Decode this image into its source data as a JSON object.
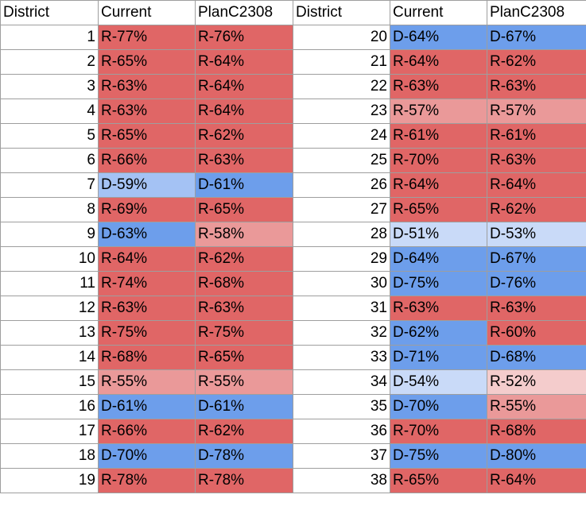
{
  "headers": [
    "District",
    "Current",
    "PlanC2308",
    "District",
    "Current",
    "PlanC2308"
  ],
  "colors": {
    "r-strong": "#e06666",
    "r-light": "#ea9999",
    "r-pale": "#f4cccc",
    "d-strong": "#6d9eeb",
    "d-light": "#a4c2f4",
    "d-pale": "#c9daf8"
  },
  "left": [
    {
      "district": "1",
      "current": "R-77%",
      "plan": "R-76%",
      "current_shade": "r-strong",
      "plan_shade": "r-strong"
    },
    {
      "district": "2",
      "current": "R-65%",
      "plan": "R-64%",
      "current_shade": "r-strong",
      "plan_shade": "r-strong"
    },
    {
      "district": "3",
      "current": "R-63%",
      "plan": "R-64%",
      "current_shade": "r-strong",
      "plan_shade": "r-strong"
    },
    {
      "district": "4",
      "current": "R-63%",
      "plan": "R-64%",
      "current_shade": "r-strong",
      "plan_shade": "r-strong"
    },
    {
      "district": "5",
      "current": "R-65%",
      "plan": "R-62%",
      "current_shade": "r-strong",
      "plan_shade": "r-strong"
    },
    {
      "district": "6",
      "current": "R-66%",
      "plan": "R-63%",
      "current_shade": "r-strong",
      "plan_shade": "r-strong"
    },
    {
      "district": "7",
      "current": "D-59%",
      "plan": "D-61%",
      "current_shade": "d-light",
      "plan_shade": "d-strong"
    },
    {
      "district": "8",
      "current": "R-69%",
      "plan": "R-65%",
      "current_shade": "r-strong",
      "plan_shade": "r-strong"
    },
    {
      "district": "9",
      "current": "D-63%",
      "plan": "R-58%",
      "current_shade": "d-strong",
      "plan_shade": "r-light"
    },
    {
      "district": "10",
      "current": "R-64%",
      "plan": "R-62%",
      "current_shade": "r-strong",
      "plan_shade": "r-strong"
    },
    {
      "district": "11",
      "current": "R-74%",
      "plan": "R-68%",
      "current_shade": "r-strong",
      "plan_shade": "r-strong"
    },
    {
      "district": "12",
      "current": "R-63%",
      "plan": "R-63%",
      "current_shade": "r-strong",
      "plan_shade": "r-strong"
    },
    {
      "district": "13",
      "current": "R-75%",
      "plan": "R-75%",
      "current_shade": "r-strong",
      "plan_shade": "r-strong"
    },
    {
      "district": "14",
      "current": "R-68%",
      "plan": "R-65%",
      "current_shade": "r-strong",
      "plan_shade": "r-strong"
    },
    {
      "district": "15",
      "current": "R-55%",
      "plan": "R-55%",
      "current_shade": "r-light",
      "plan_shade": "r-light"
    },
    {
      "district": "16",
      "current": "D-61%",
      "plan": "D-61%",
      "current_shade": "d-strong",
      "plan_shade": "d-strong"
    },
    {
      "district": "17",
      "current": "R-66%",
      "plan": "R-62%",
      "current_shade": "r-strong",
      "plan_shade": "r-strong"
    },
    {
      "district": "18",
      "current": "D-70%",
      "plan": "D-78%",
      "current_shade": "d-strong",
      "plan_shade": "d-strong"
    },
    {
      "district": "19",
      "current": "R-78%",
      "plan": "R-78%",
      "current_shade": "r-strong",
      "plan_shade": "r-strong"
    }
  ],
  "right": [
    {
      "district": "20",
      "current": "D-64%",
      "plan": "D-67%",
      "current_shade": "d-strong",
      "plan_shade": "d-strong"
    },
    {
      "district": "21",
      "current": "R-64%",
      "plan": "R-62%",
      "current_shade": "r-strong",
      "plan_shade": "r-strong"
    },
    {
      "district": "22",
      "current": "R-63%",
      "plan": "R-63%",
      "current_shade": "r-strong",
      "plan_shade": "r-strong"
    },
    {
      "district": "23",
      "current": "R-57%",
      "plan": "R-57%",
      "current_shade": "r-light",
      "plan_shade": "r-light"
    },
    {
      "district": "24",
      "current": "R-61%",
      "plan": "R-61%",
      "current_shade": "r-strong",
      "plan_shade": "r-strong"
    },
    {
      "district": "25",
      "current": "R-70%",
      "plan": "R-63%",
      "current_shade": "r-strong",
      "plan_shade": "r-strong"
    },
    {
      "district": "26",
      "current": "R-64%",
      "plan": "R-64%",
      "current_shade": "r-strong",
      "plan_shade": "r-strong"
    },
    {
      "district": "27",
      "current": "R-65%",
      "plan": "R-62%",
      "current_shade": "r-strong",
      "plan_shade": "r-strong"
    },
    {
      "district": "28",
      "current": "D-51%",
      "plan": "D-53%",
      "current_shade": "d-pale",
      "plan_shade": "d-pale"
    },
    {
      "district": "29",
      "current": "D-64%",
      "plan": "D-67%",
      "current_shade": "d-strong",
      "plan_shade": "d-strong"
    },
    {
      "district": "30",
      "current": "D-75%",
      "plan": "D-76%",
      "current_shade": "d-strong",
      "plan_shade": "d-strong"
    },
    {
      "district": "31",
      "current": "R-63%",
      "plan": "R-63%",
      "current_shade": "r-strong",
      "plan_shade": "r-strong"
    },
    {
      "district": "32",
      "current": "D-62%",
      "plan": "R-60%",
      "current_shade": "d-strong",
      "plan_shade": "r-strong"
    },
    {
      "district": "33",
      "current": "D-71%",
      "plan": "D-68%",
      "current_shade": "d-strong",
      "plan_shade": "d-strong"
    },
    {
      "district": "34",
      "current": "D-54%",
      "plan": "R-52%",
      "current_shade": "d-pale",
      "plan_shade": "r-pale"
    },
    {
      "district": "35",
      "current": "D-70%",
      "plan": "R-55%",
      "current_shade": "d-strong",
      "plan_shade": "r-light"
    },
    {
      "district": "36",
      "current": "R-70%",
      "plan": "R-68%",
      "current_shade": "r-strong",
      "plan_shade": "r-strong"
    },
    {
      "district": "37",
      "current": "D-75%",
      "plan": "D-80%",
      "current_shade": "d-strong",
      "plan_shade": "d-strong"
    },
    {
      "district": "38",
      "current": "R-65%",
      "plan": "R-64%",
      "current_shade": "r-strong",
      "plan_shade": "r-strong"
    }
  ]
}
